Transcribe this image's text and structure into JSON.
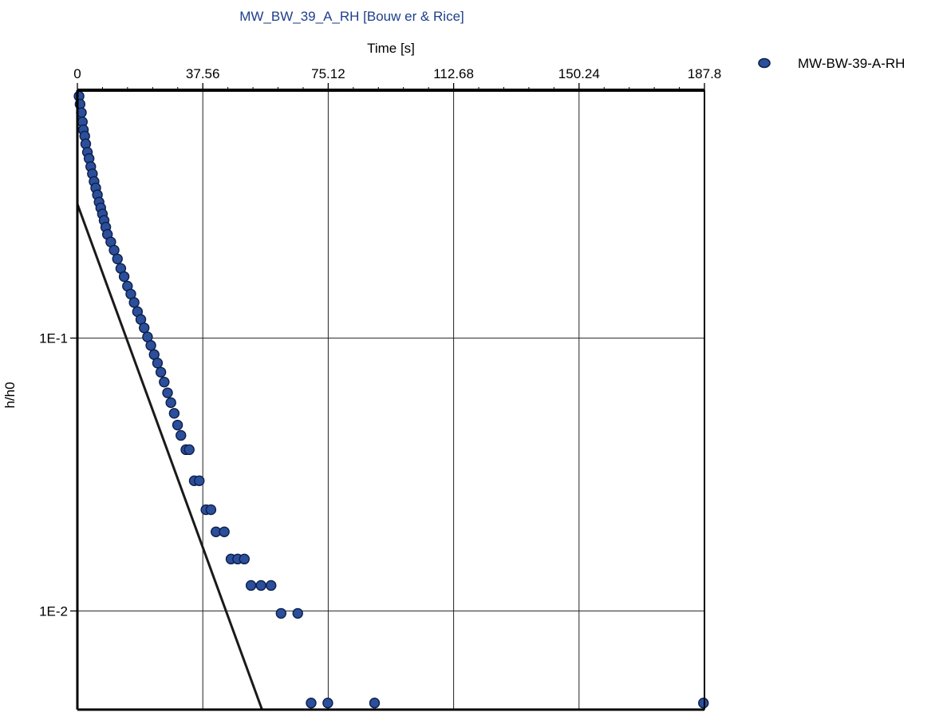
{
  "chart_data": {
    "type": "scatter",
    "title": "MW_BW_39_A_RH [Bouw er & Rice]",
    "xlabel": "Time [s]",
    "ylabel": "h/h0",
    "x_scale": "linear",
    "y_scale": "log",
    "xlim": [
      0,
      187.8
    ],
    "ylim": [
      0.00435,
      0.81
    ],
    "x_ticks": [
      "0",
      "37.56",
      "75.12",
      "112.68",
      "150.24",
      "187.8"
    ],
    "x_tick_values": [
      0,
      37.56,
      75.12,
      112.68,
      150.24,
      187.8
    ],
    "y_ticks": [
      "1E-1",
      "1E-2"
    ],
    "y_tick_values": [
      0.1,
      0.01
    ],
    "grid": true,
    "legend": "top-right",
    "colors": {
      "marker": "#2b4f9a",
      "marker_edge": "#0d1f4a",
      "fit_line": "#1a1a1a",
      "title": "#1e3f8a"
    },
    "series": [
      {
        "name": "MW-BW-39-A-RH",
        "x": [
          0.5,
          0.8,
          1.2,
          1.5,
          1.8,
          2.2,
          2.5,
          3.0,
          3.5,
          4.0,
          4.5,
          5.0,
          5.5,
          6.0,
          6.5,
          7.0,
          7.5,
          8.0,
          8.5,
          9.0,
          10.0,
          11.0,
          12.0,
          13.0,
          14.0,
          15.0,
          16.0,
          17.0,
          18.0,
          19.0,
          20.0,
          21.0,
          22.0,
          23.0,
          24.0,
          25.0,
          26.0,
          27.0,
          28.0,
          29.0,
          30.0,
          31.0,
          32.5,
          33.5,
          35.0,
          36.5,
          38.5,
          40.0,
          41.5,
          44.0,
          46.0,
          48.0,
          50.0,
          52.0,
          55.0,
          58.0,
          61.0,
          66.0,
          70.0,
          75.0,
          89.0,
          187.5
        ],
        "y": [
          0.77,
          0.72,
          0.67,
          0.62,
          0.58,
          0.55,
          0.515,
          0.48,
          0.455,
          0.425,
          0.4,
          0.375,
          0.355,
          0.335,
          0.315,
          0.3,
          0.285,
          0.27,
          0.255,
          0.24,
          0.225,
          0.21,
          0.195,
          0.18,
          0.168,
          0.155,
          0.145,
          0.135,
          0.125,
          0.117,
          0.109,
          0.101,
          0.094,
          0.087,
          0.081,
          0.075,
          0.069,
          0.063,
          0.058,
          0.053,
          0.048,
          0.044,
          0.039,
          0.039,
          0.03,
          0.03,
          0.0235,
          0.0235,
          0.0195,
          0.0195,
          0.0155,
          0.0155,
          0.0155,
          0.0124,
          0.0124,
          0.0124,
          0.0098,
          0.0098,
          0.0046,
          0.0046,
          0.0046,
          0.0046
        ]
      }
    ],
    "fit_line": {
      "x": [
        0,
        55.3
      ],
      "y": [
        0.31,
        0.00435
      ]
    }
  }
}
